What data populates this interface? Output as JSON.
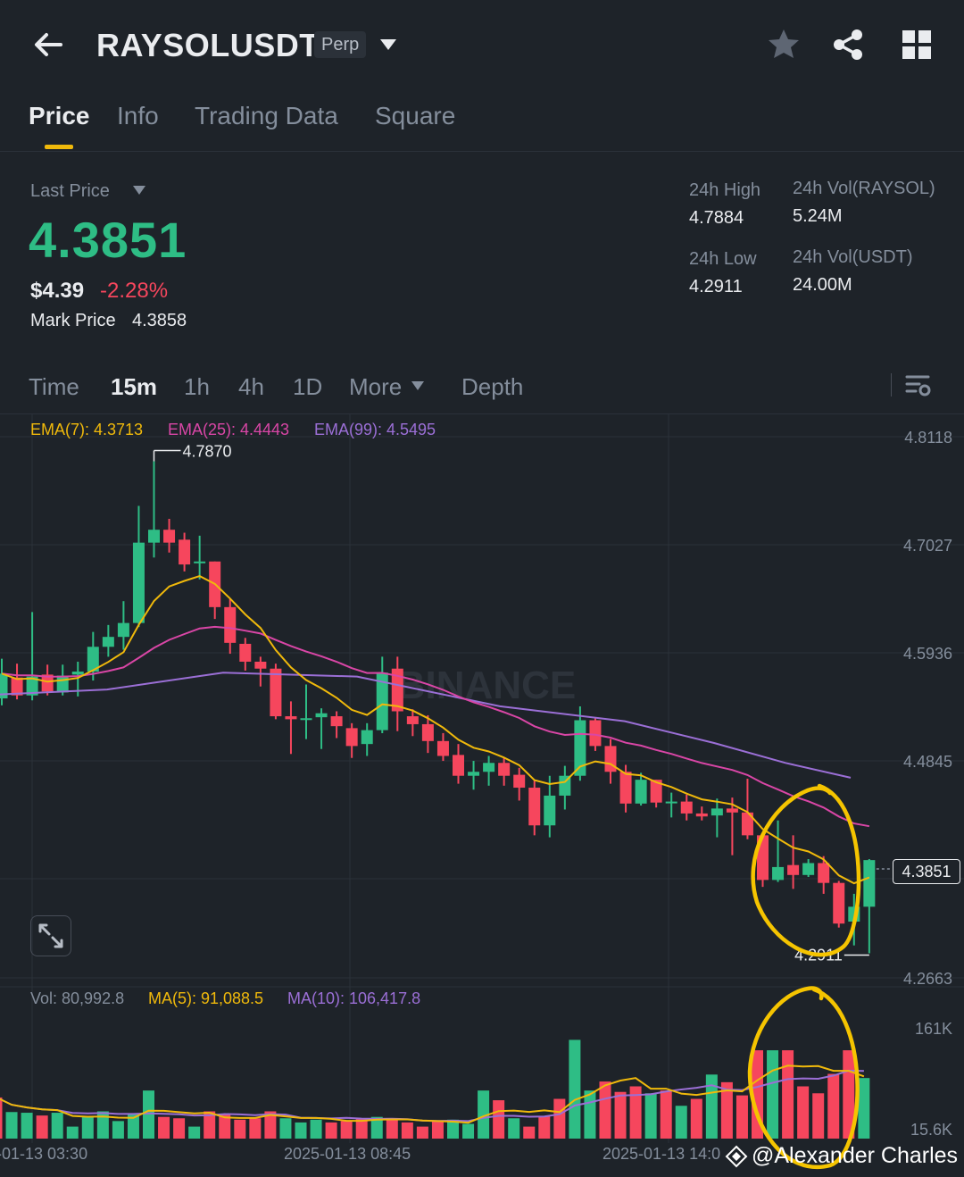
{
  "header": {
    "symbol": "RAYSOLUSDT",
    "badge": "Perp",
    "icons": {
      "back": "arrow-left-icon",
      "dropdown": "caret-down-icon",
      "favorite": "star-icon",
      "share": "share-icon",
      "menu": "grid-icon"
    }
  },
  "tabs": [
    {
      "label": "Price",
      "active": true
    },
    {
      "label": "Info",
      "active": false
    },
    {
      "label": "Trading Data",
      "active": false
    },
    {
      "label": "Square",
      "active": false
    }
  ],
  "summary": {
    "last_price_label": "Last Price",
    "last_price": "4.3851",
    "usd_price": "$4.39",
    "change": "-2.28%",
    "mark_price_label": "Mark Price",
    "mark_price": "4.3858",
    "high_label": "24h High",
    "high": "4.7884",
    "low_label": "24h Low",
    "low": "4.2911",
    "vol_base_label": "24h Vol(RAYSOL)",
    "vol_base": "5.24M",
    "vol_quote_label": "24h Vol(USDT)",
    "vol_quote": "24.00M"
  },
  "timeframes": [
    {
      "label": "Time",
      "active": false
    },
    {
      "label": "15m",
      "active": true
    },
    {
      "label": "1h",
      "active": false
    },
    {
      "label": "4h",
      "active": false
    },
    {
      "label": "1D",
      "active": false
    },
    {
      "label": "More",
      "active": false
    },
    {
      "label": "Depth",
      "active": false
    }
  ],
  "chart_data": {
    "type": "candlestick",
    "interval": "15m",
    "y_axis_ticks": [
      "4.8118",
      "4.7027",
      "4.5936",
      "4.4845",
      "4.3851",
      "4.2663"
    ],
    "ylim": [
      4.2663,
      4.8118
    ],
    "volume_axis_ticks": [
      "161K",
      "15.6K"
    ],
    "volume_range": [
      15600,
      161000
    ],
    "x_axis_labels": [
      "-01-13 03:30",
      "2025-01-13 08:45",
      "2025-01-13 14:0"
    ],
    "indicators": {
      "ema7": "EMA(7): 4.3713",
      "ema25": "EMA(25): 4.4443",
      "ema99": "EMA(99): 4.5495"
    },
    "volume_legend": {
      "vol": "Vol: 80,992.8",
      "ma5": "MA(5): 91,088.5",
      "ma10": "MA(10): 106,417.8"
    },
    "high_marker": "4.7870",
    "low_marker": "4.2911",
    "current_price": "4.3851",
    "colors": {
      "up": "#2ebd85",
      "down": "#f6465d",
      "ema7": "#f0b90b",
      "ema25": "#d946a6",
      "ema99": "#9b6fd6",
      "annotation": "#f5c400"
    },
    "candles": [
      {
        "o": 4.548,
        "c": 4.573,
        "h": 4.588,
        "l": 4.541
      },
      {
        "o": 4.569,
        "c": 4.551,
        "h": 4.583,
        "l": 4.547
      },
      {
        "o": 4.551,
        "c": 4.57,
        "h": 4.635,
        "l": 4.546
      },
      {
        "o": 4.572,
        "c": 4.555,
        "h": 4.582,
        "l": 4.551
      },
      {
        "o": 4.554,
        "c": 4.571,
        "h": 4.582,
        "l": 4.551
      },
      {
        "o": 4.572,
        "c": 4.575,
        "h": 4.585,
        "l": 4.55
      },
      {
        "o": 4.575,
        "c": 4.6,
        "h": 4.615,
        "l": 4.566
      },
      {
        "o": 4.6,
        "c": 4.61,
        "h": 4.622,
        "l": 4.59
      },
      {
        "o": 4.61,
        "c": 4.624,
        "h": 4.646,
        "l": 4.597
      },
      {
        "o": 4.624,
        "c": 4.705,
        "h": 4.742,
        "l": 4.62
      },
      {
        "o": 4.705,
        "c": 4.718,
        "h": 4.787,
        "l": 4.69
      },
      {
        "o": 4.718,
        "c": 4.705,
        "h": 4.729,
        "l": 4.695
      },
      {
        "o": 4.708,
        "c": 4.683,
        "h": 4.715,
        "l": 4.676
      },
      {
        "o": 4.685,
        "c": 4.686,
        "h": 4.712,
        "l": 4.668
      },
      {
        "o": 4.686,
        "c": 4.64,
        "h": 4.686,
        "l": 4.628
      },
      {
        "o": 4.64,
        "c": 4.604,
        "h": 4.648,
        "l": 4.593
      },
      {
        "o": 4.603,
        "c": 4.585,
        "h": 4.609,
        "l": 4.576
      },
      {
        "o": 4.585,
        "c": 4.578,
        "h": 4.59,
        "l": 4.56
      },
      {
        "o": 4.578,
        "c": 4.53,
        "h": 4.583,
        "l": 4.527
      },
      {
        "o": 4.53,
        "c": 4.527,
        "h": 4.545,
        "l": 4.492
      },
      {
        "o": 4.527,
        "c": 4.528,
        "h": 4.562,
        "l": 4.507
      },
      {
        "o": 4.529,
        "c": 4.533,
        "h": 4.538,
        "l": 4.497
      },
      {
        "o": 4.53,
        "c": 4.52,
        "h": 4.535,
        "l": 4.508
      },
      {
        "o": 4.518,
        "c": 4.5,
        "h": 4.523,
        "l": 4.488
      },
      {
        "o": 4.502,
        "c": 4.516,
        "h": 4.523,
        "l": 4.49
      },
      {
        "o": 4.516,
        "c": 4.574,
        "h": 4.59,
        "l": 4.513
      },
      {
        "o": 4.578,
        "c": 4.535,
        "h": 4.59,
        "l": 4.515
      },
      {
        "o": 4.53,
        "c": 4.522,
        "h": 4.537,
        "l": 4.51
      },
      {
        "o": 4.522,
        "c": 4.505,
        "h": 4.531,
        "l": 4.493
      },
      {
        "o": 4.505,
        "c": 4.49,
        "h": 4.513,
        "l": 4.485
      },
      {
        "o": 4.491,
        "c": 4.47,
        "h": 4.502,
        "l": 4.462
      },
      {
        "o": 4.47,
        "c": 4.474,
        "h": 4.485,
        "l": 4.456
      },
      {
        "o": 4.474,
        "c": 4.483,
        "h": 4.49,
        "l": 4.46
      },
      {
        "o": 4.483,
        "c": 4.47,
        "h": 4.488,
        "l": 4.46
      },
      {
        "o": 4.471,
        "c": 4.458,
        "h": 4.478,
        "l": 4.445
      },
      {
        "o": 4.458,
        "c": 4.42,
        "h": 4.465,
        "l": 4.41
      },
      {
        "o": 4.42,
        "c": 4.45,
        "h": 4.47,
        "l": 4.408
      },
      {
        "o": 4.45,
        "c": 4.47,
        "h": 4.48,
        "l": 4.436
      },
      {
        "o": 4.47,
        "c": 4.526,
        "h": 4.54,
        "l": 4.465
      },
      {
        "o": 4.526,
        "c": 4.5,
        "h": 4.529,
        "l": 4.495
      },
      {
        "o": 4.5,
        "c": 4.474,
        "h": 4.507,
        "l": 4.462
      },
      {
        "o": 4.474,
        "c": 4.442,
        "h": 4.481,
        "l": 4.433
      },
      {
        "o": 4.442,
        "c": 4.466,
        "h": 4.473,
        "l": 4.44
      },
      {
        "o": 4.466,
        "c": 4.443,
        "h": 4.466,
        "l": 4.438
      },
      {
        "o": 4.443,
        "c": 4.444,
        "h": 4.453,
        "l": 4.428
      },
      {
        "o": 4.444,
        "c": 4.432,
        "h": 4.451,
        "l": 4.425
      },
      {
        "o": 4.432,
        "c": 4.429,
        "h": 4.439,
        "l": 4.425
      },
      {
        "o": 4.43,
        "c": 4.437,
        "h": 4.447,
        "l": 4.408
      },
      {
        "o": 4.437,
        "c": 4.433,
        "h": 4.448,
        "l": 4.39
      },
      {
        "o": 4.433,
        "c": 4.41,
        "h": 4.467,
        "l": 4.406
      },
      {
        "o": 4.41,
        "c": 4.365,
        "h": 4.412,
        "l": 4.358
      },
      {
        "o": 4.365,
        "c": 4.378,
        "h": 4.425,
        "l": 4.363
      },
      {
        "o": 4.38,
        "c": 4.37,
        "h": 4.41,
        "l": 4.356
      },
      {
        "o": 4.37,
        "c": 4.382,
        "h": 4.386,
        "l": 4.368
      },
      {
        "o": 4.382,
        "c": 4.362,
        "h": 4.389,
        "l": 4.351
      },
      {
        "o": 4.362,
        "c": 4.321,
        "h": 4.364,
        "l": 4.317
      },
      {
        "o": 4.323,
        "c": 4.338,
        "h": 4.351,
        "l": 4.299
      },
      {
        "o": 4.338,
        "c": 4.385,
        "h": 4.386,
        "l": 4.291
      }
    ],
    "volumes": [
      {
        "v": 62000,
        "up": false
      },
      {
        "v": 41000,
        "up": true
      },
      {
        "v": 40000,
        "up": true
      },
      {
        "v": 36000,
        "up": false
      },
      {
        "v": 40000,
        "up": true
      },
      {
        "v": 20000,
        "up": true
      },
      {
        "v": 35000,
        "up": true
      },
      {
        "v": 42000,
        "up": true
      },
      {
        "v": 28000,
        "up": true
      },
      {
        "v": 38000,
        "up": true
      },
      {
        "v": 72000,
        "up": true
      },
      {
        "v": 34000,
        "up": false
      },
      {
        "v": 32000,
        "up": false
      },
      {
        "v": 20000,
        "up": true
      },
      {
        "v": 42000,
        "up": false
      },
      {
        "v": 38000,
        "up": false
      },
      {
        "v": 30000,
        "up": false
      },
      {
        "v": 32000,
        "up": false
      },
      {
        "v": 42000,
        "up": false
      },
      {
        "v": 32000,
        "up": true
      },
      {
        "v": 26000,
        "up": true
      },
      {
        "v": 30000,
        "up": true
      },
      {
        "v": 26000,
        "up": false
      },
      {
        "v": 28000,
        "up": false
      },
      {
        "v": 32000,
        "up": false
      },
      {
        "v": 34000,
        "up": true
      },
      {
        "v": 32000,
        "up": false
      },
      {
        "v": 26000,
        "up": false
      },
      {
        "v": 20000,
        "up": false
      },
      {
        "v": 28000,
        "up": false
      },
      {
        "v": 30000,
        "up": true
      },
      {
        "v": 24000,
        "up": true
      },
      {
        "v": 72000,
        "up": true
      },
      {
        "v": 58000,
        "up": false
      },
      {
        "v": 32000,
        "up": true
      },
      {
        "v": 20000,
        "up": false
      },
      {
        "v": 35000,
        "up": false
      },
      {
        "v": 60000,
        "up": false
      },
      {
        "v": 145000,
        "up": true
      },
      {
        "v": 72000,
        "up": true
      },
      {
        "v": 85000,
        "up": false
      },
      {
        "v": 70000,
        "up": false
      },
      {
        "v": 78000,
        "up": false
      },
      {
        "v": 68000,
        "up": true
      },
      {
        "v": 72000,
        "up": false
      },
      {
        "v": 50000,
        "up": true
      },
      {
        "v": 60000,
        "up": false
      },
      {
        "v": 95000,
        "up": true
      },
      {
        "v": 84000,
        "up": false
      },
      {
        "v": 65000,
        "up": false
      },
      {
        "v": 130000,
        "up": false
      },
      {
        "v": 130000,
        "up": true
      },
      {
        "v": 130000,
        "up": false
      },
      {
        "v": 78000,
        "up": false
      },
      {
        "v": 68000,
        "up": false
      },
      {
        "v": 96000,
        "up": false
      },
      {
        "v": 130000,
        "up": false
      },
      {
        "v": 90000,
        "up": true
      }
    ]
  },
  "watermark": {
    "text": "@Alexander Charles"
  }
}
